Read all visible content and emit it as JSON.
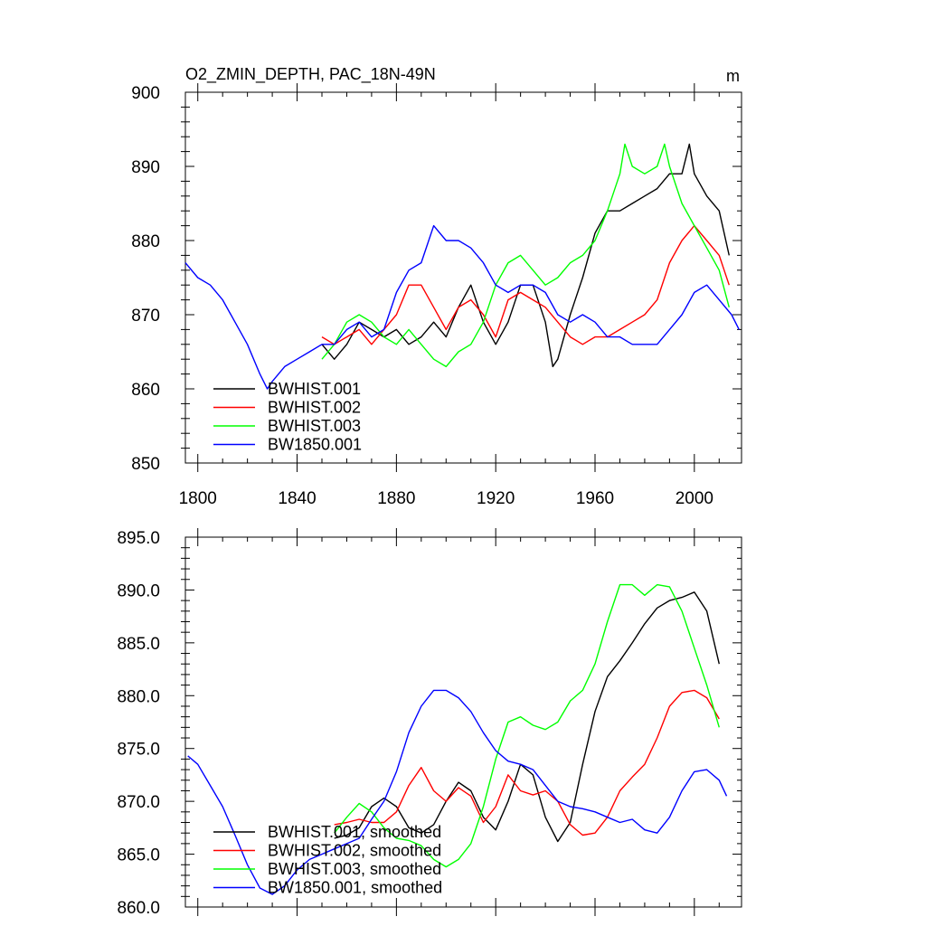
{
  "chart_data": [
    {
      "type": "line",
      "title": "O2_ZMIN_DEPTH, PAC_18N-49N",
      "units": "m",
      "xlim": [
        1795,
        2019
      ],
      "ylim": [
        850,
        900
      ],
      "x_ticks": [
        1800,
        1840,
        1880,
        1920,
        1960,
        2000
      ],
      "y_ticks": [
        850,
        860,
        870,
        880,
        890,
        900
      ],
      "y_tick_labels": [
        "850",
        "860",
        "870",
        "880",
        "890",
        "900"
      ],
      "legend_location": "lower-left",
      "grid": false,
      "series": [
        {
          "name": "BWHIST.001",
          "color": "#000000",
          "x": [
            1850,
            1855,
            1860,
            1865,
            1870,
            1875,
            1880,
            1885,
            1890,
            1895,
            1900,
            1905,
            1910,
            1915,
            1920,
            1925,
            1930,
            1935,
            1940,
            1943,
            1945,
            1950,
            1955,
            1960,
            1965,
            1970,
            1975,
            1980,
            1985,
            1990,
            1995,
            1998,
            2000,
            2005,
            2010,
            2014
          ],
          "y": [
            866,
            864,
            866,
            869,
            868,
            867,
            868,
            866,
            867,
            869,
            867,
            871,
            874,
            869,
            866,
            869,
            874,
            874,
            869,
            863,
            864,
            870,
            875,
            881,
            884,
            884,
            885,
            886,
            887,
            889,
            889,
            893,
            889,
            886,
            884,
            878
          ]
        },
        {
          "name": "BWHIST.002",
          "color": "#ff0000",
          "x": [
            1850,
            1855,
            1860,
            1865,
            1870,
            1875,
            1880,
            1885,
            1890,
            1895,
            1900,
            1905,
            1910,
            1915,
            1920,
            1925,
            1930,
            1935,
            1940,
            1945,
            1950,
            1955,
            1960,
            1965,
            1970,
            1975,
            1980,
            1985,
            1990,
            1995,
            2000,
            2005,
            2010,
            2014
          ],
          "y": [
            867,
            866,
            867,
            868,
            866,
            868,
            870,
            874,
            874,
            871,
            868,
            871,
            872,
            870,
            867,
            872,
            873,
            872,
            871,
            869,
            867,
            866,
            867,
            867,
            868,
            869,
            870,
            872,
            877,
            880,
            882,
            880,
            878,
            874
          ]
        },
        {
          "name": "BWHIST.003",
          "color": "#00ff00",
          "x": [
            1850,
            1855,
            1860,
            1865,
            1870,
            1875,
            1880,
            1885,
            1890,
            1895,
            1900,
            1905,
            1910,
            1915,
            1920,
            1925,
            1930,
            1935,
            1940,
            1945,
            1950,
            1955,
            1960,
            1965,
            1970,
            1972,
            1975,
            1980,
            1985,
            1988,
            1990,
            1995,
            2000,
            2005,
            2010,
            2014
          ],
          "y": [
            864,
            866,
            869,
            870,
            869,
            867,
            866,
            868,
            866,
            864,
            863,
            865,
            866,
            869,
            874,
            877,
            878,
            876,
            874,
            875,
            877,
            878,
            880,
            884,
            889,
            893,
            890,
            889,
            890,
            893,
            890,
            885,
            882,
            879,
            876,
            871
          ]
        },
        {
          "name": "BW1850.001",
          "color": "#0000ff",
          "x": [
            1795,
            1800,
            1805,
            1810,
            1815,
            1820,
            1825,
            1828,
            1830,
            1835,
            1840,
            1845,
            1850,
            1855,
            1860,
            1865,
            1870,
            1875,
            1880,
            1885,
            1890,
            1895,
            1900,
            1905,
            1910,
            1915,
            1920,
            1925,
            1930,
            1935,
            1940,
            1945,
            1950,
            1955,
            1960,
            1965,
            1970,
            1975,
            1980,
            1985,
            1990,
            1995,
            2000,
            2005,
            2010,
            2015,
            2018
          ],
          "y": [
            877,
            875,
            874,
            872,
            869,
            866,
            862,
            860,
            861,
            863,
            864,
            865,
            866,
            866,
            868,
            869,
            867,
            868,
            873,
            876,
            877,
            882,
            880,
            880,
            879,
            877,
            874,
            873,
            874,
            874,
            873,
            870,
            869,
            870,
            869,
            867,
            867,
            866,
            866,
            866,
            868,
            870,
            873,
            874,
            872,
            870,
            868
          ]
        }
      ]
    },
    {
      "type": "line",
      "title": "",
      "xlim": [
        1795,
        2019
      ],
      "ylim": [
        860,
        895
      ],
      "x_ticks": [
        1800,
        1840,
        1880,
        1920,
        1960,
        2000
      ],
      "y_ticks": [
        860,
        865,
        870,
        875,
        880,
        885,
        890,
        895
      ],
      "y_tick_labels": [
        "860.0",
        "865.0",
        "870.0",
        "875.0",
        "880.0",
        "885.0",
        "890.0",
        "895.0"
      ],
      "legend_location": "lower-left",
      "grid": false,
      "series": [
        {
          "name": "BWHIST.001, smoothed",
          "color": "#000000",
          "x": [
            1855,
            1860,
            1865,
            1870,
            1875,
            1880,
            1885,
            1890,
            1895,
            1900,
            1905,
            1910,
            1915,
            1920,
            1925,
            1930,
            1935,
            1940,
            1945,
            1950,
            1955,
            1960,
            1965,
            1970,
            1975,
            1980,
            1985,
            1990,
            1995,
            2000,
            2005,
            2010
          ],
          "y": [
            866.5,
            866.8,
            867.5,
            869.5,
            870.3,
            869.5,
            867.5,
            867.0,
            867.8,
            870.0,
            871.8,
            871.0,
            868.5,
            867.3,
            870.0,
            873.5,
            872.5,
            868.5,
            866.2,
            868.0,
            873.5,
            878.5,
            881.8,
            883.3,
            885.0,
            886.8,
            888.3,
            889.0,
            889.3,
            889.8,
            888.0,
            883.0
          ]
        },
        {
          "name": "BWHIST.002, smoothed",
          "color": "#ff0000",
          "x": [
            1855,
            1860,
            1865,
            1870,
            1875,
            1880,
            1885,
            1890,
            1895,
            1900,
            1905,
            1910,
            1915,
            1920,
            1925,
            1930,
            1935,
            1940,
            1945,
            1950,
            1955,
            1960,
            1965,
            1970,
            1975,
            1980,
            1985,
            1990,
            1995,
            2000,
            2005,
            2010
          ],
          "y": [
            867.8,
            868.0,
            868.3,
            868.0,
            868.0,
            869.0,
            871.5,
            873.2,
            871.0,
            870.0,
            871.3,
            870.5,
            868.0,
            869.5,
            872.5,
            871.0,
            870.6,
            871.0,
            870.0,
            867.8,
            866.8,
            867.0,
            868.5,
            871.0,
            872.3,
            873.5,
            876.0,
            879.0,
            880.3,
            880.5,
            879.8,
            877.8
          ]
        },
        {
          "name": "BWHIST.003, smoothed",
          "color": "#00ff00",
          "x": [
            1855,
            1860,
            1865,
            1870,
            1875,
            1880,
            1885,
            1890,
            1895,
            1900,
            1905,
            1910,
            1915,
            1920,
            1925,
            1930,
            1935,
            1940,
            1945,
            1950,
            1955,
            1960,
            1965,
            1970,
            1975,
            1980,
            1985,
            1990,
            1995,
            2000,
            2005,
            2010
          ],
          "y": [
            867.0,
            868.5,
            869.8,
            869.0,
            867.5,
            866.5,
            866.3,
            865.8,
            864.5,
            863.8,
            864.5,
            866.0,
            869.5,
            874.0,
            877.5,
            878.0,
            877.2,
            876.8,
            877.5,
            879.5,
            880.5,
            883.0,
            887.0,
            890.5,
            890.5,
            889.5,
            890.5,
            890.3,
            888.0,
            884.5,
            881.0,
            877.0
          ]
        },
        {
          "name": "BW1850.001, smoothed",
          "color": "#0000ff",
          "x": [
            1796,
            1800,
            1805,
            1810,
            1815,
            1820,
            1825,
            1830,
            1835,
            1840,
            1845,
            1850,
            1855,
            1860,
            1865,
            1870,
            1875,
            1880,
            1885,
            1890,
            1895,
            1900,
            1905,
            1910,
            1915,
            1920,
            1925,
            1930,
            1935,
            1940,
            1945,
            1950,
            1955,
            1960,
            1965,
            1970,
            1975,
            1980,
            1985,
            1990,
            1995,
            2000,
            2005,
            2010,
            2013
          ],
          "y": [
            874.3,
            873.5,
            871.5,
            869.5,
            866.8,
            864.0,
            861.8,
            861.2,
            862.0,
            863.5,
            864.5,
            865.0,
            865.5,
            866.0,
            866.5,
            868.3,
            870.0,
            872.8,
            876.5,
            879.0,
            880.5,
            880.5,
            879.8,
            878.5,
            876.5,
            874.8,
            873.8,
            873.5,
            873.0,
            871.5,
            870.0,
            869.5,
            869.3,
            869.0,
            868.5,
            868.0,
            868.3,
            867.3,
            867.0,
            868.5,
            871.0,
            872.8,
            873.0,
            872.0,
            870.5
          ]
        }
      ]
    }
  ]
}
